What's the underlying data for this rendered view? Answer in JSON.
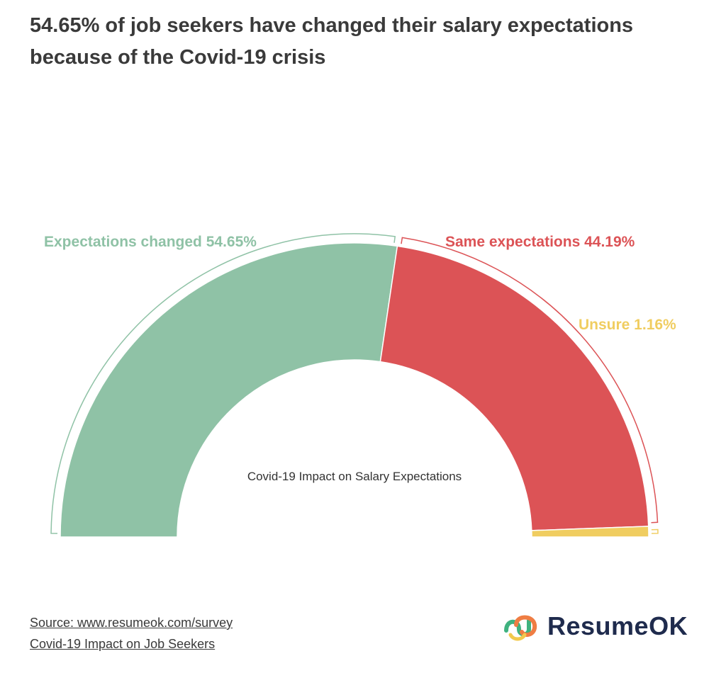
{
  "header": {
    "title": "54.65% of job seekers have changed their salary expectations because of the Covid-19 crisis"
  },
  "chart_data": {
    "type": "pie",
    "subtype": "semi-donut",
    "title": "Covid-19 Impact on Salary Expectations",
    "slices": [
      {
        "label": "Expectations changed",
        "value": 54.65,
        "display": "Expectations changed 54.65%",
        "color": "#8fc2a6"
      },
      {
        "label": "Same expectations",
        "value": 44.19,
        "display": "Same expectations 44.19%",
        "color": "#dc5356"
      },
      {
        "label": "Unsure",
        "value": 1.16,
        "display": "Unsure 1.16%",
        "color": "#f0cd60"
      }
    ],
    "legend": "none"
  },
  "footer": {
    "source_label": "Source: www.resumeok.com/survey",
    "source_sub": "Covid-19 Impact on Job Seekers",
    "logo_text": "ResumeOK",
    "logo_icon": "paperclip-logo-icon"
  }
}
